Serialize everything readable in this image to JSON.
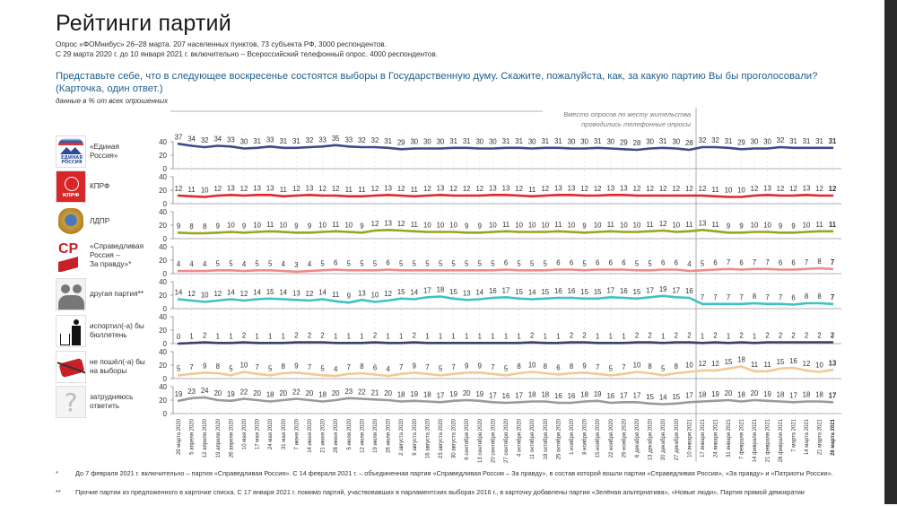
{
  "header": {
    "title": "Рейтинги партий",
    "subtitle_1": "Опрос «ФОМнибус» 26–28 марта. 207 населенных пунктов, 73 субъекта РФ, 3000 респондентов.",
    "subtitle_2": "С 29 марта 2020 г. до 10 января 2021 г. включительно – Всероссийский телефонный опрос. 4000 респондентов.",
    "question": "Представьте себе, что в следующее воскресенье состоятся выборы в Государственную думу. Скажите, пожалуйста, как, за какую партию Вы бы проголосовали? (Карточка, один ответ.)",
    "units": "данные в % от всех опрошенных"
  },
  "annotation": "Вместо опросов по месту жительства\nпроводились телефонные опросы",
  "footnotes": [
    {
      "mark": "*",
      "text": "До 7 февраля 2021 г. включительно – партия «Справедливая Россия». С 14 февраля 2021 г. – объединенная партия «Справедливая Россия – За правду», в состав которой вошли партии «Справедливая Россия», «За правду» и «Патриоты России»."
    },
    {
      "mark": "**",
      "text": "Прочие партии из предложенного в карточке списка. С 17 января 2021 г. помимо партий, участвовавших в парламентских выборах 2016 г., в карточку добавлены партии «Зелёная альтернатива», «Новые люди», Партия прямой демократии"
    }
  ],
  "icons": {
    "er": "er-logo-icon",
    "kprf": "kprf-logo-icon",
    "ldpr": "ldpr-emblem-icon",
    "sr": "sr-logo-icon",
    "other": "people-silhouette-icon",
    "spoiled": "trash-bin-icon",
    "notvote": "crossed-ballot-icon",
    "hard": "question-mark-icon"
  },
  "logo_text": {
    "er": "ЕДИНАЯ РОССИЯ",
    "kprf": "КПРФ",
    "sr": "СР"
  },
  "chart_data": {
    "type": "line",
    "title": "Рейтинги партий",
    "ylabel": "%",
    "ylim": [
      0,
      40
    ],
    "yticks": [
      "40",
      "20",
      "0"
    ],
    "break_after_index": 39,
    "x": [
      "29 марта 2020",
      "5 апреля 2020",
      "12 апреля 2020",
      "19 апреля 2020",
      "26 апреля 2020",
      "10 мая 2020",
      "17 мая 2020",
      "24 мая 2020",
      "31 мая 2020",
      "7 июня 2020",
      "14 июня 2020",
      "21 июня 2020",
      "28 июня 2020",
      "5 июля 2020",
      "12 июля 2020",
      "19 июля 2020",
      "26 июля 2020",
      "2 августа 2020",
      "9 августа 2020",
      "16 августа 2020",
      "23 августа 2020",
      "30 августа 2020",
      "6 сентября 2020",
      "13 сентября 2020",
      "20 сентября 2020",
      "27 сентября 2020",
      "4 октября 2020",
      "11 октября 2020",
      "18 октября 2020",
      "25 октября 2020",
      "1 ноября 2020",
      "8 ноября 2020",
      "15 ноября 2020",
      "22 ноября 2020",
      "29 ноября 2020",
      "6 декабря 2020",
      "13 декабря 2020",
      "20 декабря 2020",
      "27 декабря 2020",
      "10 января 2021",
      "17 января 2021",
      "24 января 2021",
      "31 января 2021",
      "7 февраля 2021",
      "14 февраля 2021",
      "21 февраля 2021",
      "28 февраля 2021",
      "7 марта 2021",
      "14 марта 2021",
      "21 марта 2021",
      "28 марта 2021"
    ],
    "series": [
      {
        "key": "er",
        "name": "«Единая\nРоссия»",
        "color": "#3d4a8a",
        "values": [
          37,
          34,
          32,
          34,
          33,
          30,
          31,
          33,
          31,
          31,
          32,
          33,
          35,
          33,
          32,
          32,
          31,
          29,
          30,
          30,
          30,
          31,
          31,
          30,
          30,
          31,
          31,
          30,
          31,
          31,
          30,
          30,
          31,
          30,
          29,
          28,
          30,
          31,
          30,
          28,
          32,
          32,
          31,
          29,
          30,
          30,
          32,
          31,
          31,
          31,
          31
        ]
      },
      {
        "key": "kprf",
        "name": "КПРФ",
        "color": "#e3262b",
        "values": [
          12,
          11,
          10,
          12,
          13,
          12,
          13,
          13,
          11,
          12,
          13,
          12,
          12,
          11,
          11,
          12,
          13,
          12,
          11,
          12,
          13,
          12,
          12,
          12,
          13,
          13,
          12,
          11,
          12,
          13,
          13,
          12,
          12,
          13,
          13,
          12,
          12,
          12,
          12,
          12,
          12,
          11,
          10,
          10,
          12,
          13,
          12,
          12,
          13,
          12,
          12
        ]
      },
      {
        "key": "ldpr",
        "name": "ЛДПР",
        "color": "#9aa41e",
        "values": [
          9,
          8,
          8,
          9,
          10,
          9,
          10,
          11,
          10,
          9,
          9,
          10,
          11,
          10,
          9,
          12,
          13,
          12,
          11,
          10,
          10,
          10,
          9,
          9,
          10,
          11,
          10,
          10,
          10,
          11,
          10,
          9,
          10,
          11,
          10,
          10,
          11,
          12,
          10,
          11,
          13,
          11,
          9,
          9,
          10,
          10,
          9,
          9,
          10,
          11,
          11
        ]
      },
      {
        "key": "sr",
        "name": "«Справедливая\nРоссия –\nЗа правду»*",
        "color": "#ef8a8a",
        "values": [
          4,
          4,
          4,
          5,
          5,
          4,
          5,
          5,
          4,
          3,
          4,
          5,
          6,
          5,
          5,
          5,
          6,
          5,
          5,
          5,
          5,
          5,
          5,
          5,
          5,
          6,
          5,
          5,
          5,
          6,
          6,
          5,
          6,
          6,
          6,
          5,
          5,
          6,
          6,
          4,
          5,
          6,
          7,
          6,
          7,
          7,
          6,
          6,
          7,
          8,
          7
        ]
      },
      {
        "key": "other",
        "name": "другая партия**",
        "color": "#3cc3c3",
        "values": [
          14,
          12,
          10,
          12,
          14,
          12,
          14,
          15,
          14,
          13,
          12,
          14,
          11,
          9,
          13,
          10,
          12,
          15,
          14,
          17,
          18,
          15,
          13,
          14,
          16,
          17,
          15,
          14,
          15,
          16,
          16,
          15,
          15,
          17,
          16,
          15,
          17,
          19,
          17,
          16,
          7,
          7,
          7,
          7,
          8,
          7,
          7,
          6,
          8,
          8,
          7
        ]
      },
      {
        "key": "spoiled",
        "name": "испортил(-а) бы\nбюллетень",
        "color": "#3a3f6e",
        "values": [
          0,
          1,
          2,
          1,
          1,
          2,
          1,
          1,
          1,
          2,
          2,
          2,
          1,
          1,
          1,
          2,
          1,
          1,
          2,
          1,
          1,
          1,
          1,
          1,
          1,
          1,
          1,
          2,
          1,
          1,
          2,
          2,
          1,
          1,
          1,
          2,
          2,
          1,
          2,
          2,
          1,
          2,
          1,
          2,
          1,
          2,
          2,
          2,
          2,
          2,
          2
        ]
      },
      {
        "key": "notvote",
        "name": "не пошёл(-а) бы\nна выборы",
        "color": "#f4c894",
        "values": [
          5,
          7,
          9,
          8,
          5,
          10,
          7,
          5,
          8,
          9,
          7,
          5,
          4,
          7,
          8,
          6,
          4,
          7,
          9,
          7,
          5,
          7,
          9,
          9,
          7,
          5,
          8,
          10,
          8,
          6,
          8,
          9,
          7,
          5,
          7,
          10,
          8,
          5,
          8,
          10,
          12,
          12,
          15,
          18,
          11,
          11,
          15,
          16,
          12,
          10,
          13
        ]
      },
      {
        "key": "hard",
        "name": "затрудняюсь\nответить",
        "color": "#9a9a9a",
        "values": [
          19,
          23,
          24,
          20,
          19,
          22,
          20,
          18,
          20,
          22,
          20,
          18,
          20,
          23,
          22,
          21,
          20,
          18,
          19,
          18,
          17,
          19,
          20,
          19,
          17,
          16,
          17,
          18,
          18,
          16,
          16,
          18,
          19,
          16,
          17,
          17,
          15,
          14,
          15,
          17,
          18,
          19,
          20,
          18,
          20,
          19,
          18,
          17,
          18,
          18,
          17
        ]
      }
    ]
  }
}
